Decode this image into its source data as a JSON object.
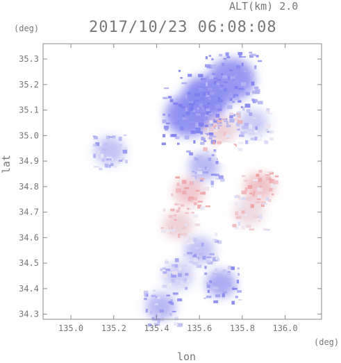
{
  "header": {
    "altitude_label": "ALT(km) 2.0",
    "datetime": "2017/10/23 06:08:08"
  },
  "chart_data": {
    "type": "heatmap",
    "title": "2017/10/23 06:08:08",
    "xlabel": "lon",
    "ylabel": "lat",
    "xunit": "(deg)",
    "yunit": "(deg)",
    "xlim": [
      134.87,
      136.17
    ],
    "ylim": [
      34.28,
      35.36
    ],
    "xticks": [
      "135.0",
      "135.2",
      "135.4",
      "135.6",
      "135.8",
      "136.0"
    ],
    "yticks": [
      "34.3",
      "34.4",
      "34.5",
      "34.6",
      "34.7",
      "34.8",
      "34.9",
      "35.0",
      "35.1",
      "35.2",
      "35.3"
    ],
    "colors": {
      "negative": "#7b7bf0",
      "positive": "#f08a8a",
      "neutral": "#e8e8f4"
    },
    "regions": [
      {
        "lon": 135.63,
        "lat": 35.15,
        "value": -0.9
      },
      {
        "lon": 135.55,
        "lat": 35.08,
        "value": -0.85
      },
      {
        "lon": 135.75,
        "lat": 35.22,
        "value": -0.8
      },
      {
        "lon": 135.85,
        "lat": 35.05,
        "value": -0.3
      },
      {
        "lon": 135.7,
        "lat": 35.02,
        "value": 0.3
      },
      {
        "lon": 135.62,
        "lat": 34.88,
        "value": -0.5
      },
      {
        "lon": 135.55,
        "lat": 34.78,
        "value": 0.4
      },
      {
        "lon": 135.88,
        "lat": 34.8,
        "value": 0.45
      },
      {
        "lon": 135.83,
        "lat": 34.7,
        "value": 0.2
      },
      {
        "lon": 135.5,
        "lat": 34.65,
        "value": 0.3
      },
      {
        "lon": 135.6,
        "lat": 34.55,
        "value": -0.4
      },
      {
        "lon": 135.5,
        "lat": 34.45,
        "value": -0.3
      },
      {
        "lon": 135.7,
        "lat": 34.42,
        "value": -0.6
      },
      {
        "lon": 135.42,
        "lat": 34.33,
        "value": -0.5
      },
      {
        "lon": 135.18,
        "lat": 34.94,
        "value": -0.4
      }
    ]
  }
}
